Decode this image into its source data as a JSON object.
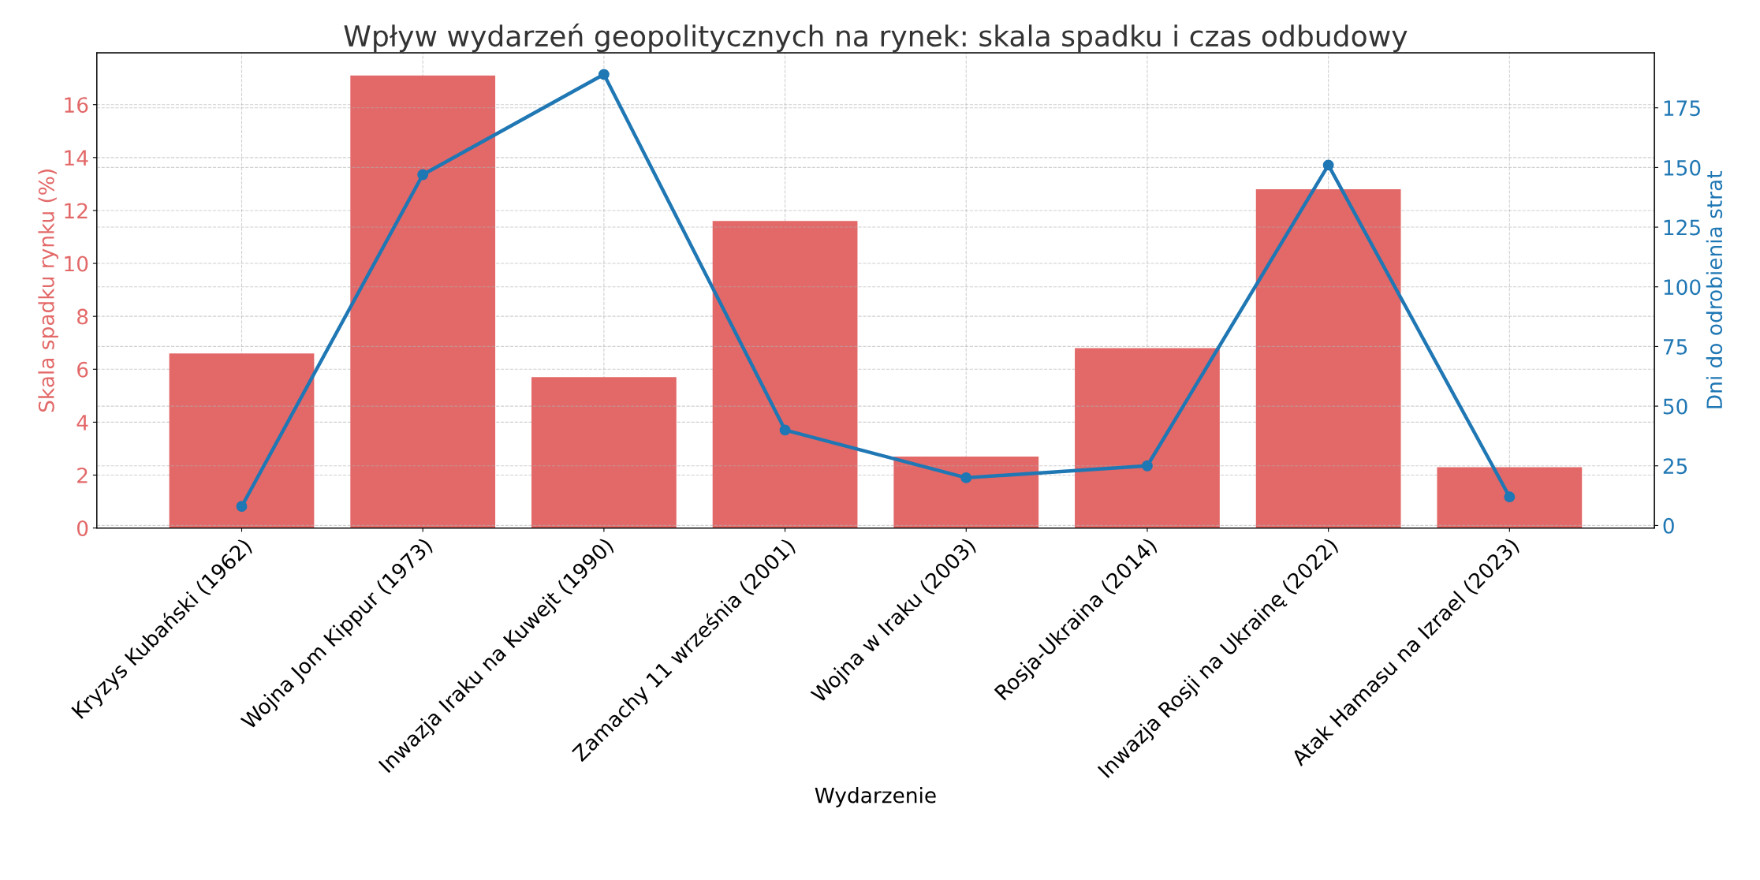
{
  "chart_data": {
    "type": "bar",
    "title": "Wpływ wydarzeń geopolitycznych na rynek: skala spadku i czas odbudowy",
    "xlabel": "Wydarzenie",
    "ylabel": "Skala spadku rynku (%)",
    "y2label": "Dni do odrobienia strat",
    "categories": [
      "Kryzys Kubański (1962)",
      "Wojna Jom Kippur (1973)",
      "Inwazja Iraku na Kuwejt (1990)",
      "Zamachy 11 września (2001)",
      "Wojna w Iraku (2003)",
      "Rosja-Ukraina (2014)",
      "Inwazja Rosji na Ukrainę (2022)",
      "Atak Hamasu na Izrael (2023)"
    ],
    "series": [
      {
        "color": "#e36868",
        "values": [
          6.6,
          17.1,
          5.7,
          11.6,
          2.7,
          6.8,
          12.8,
          2.3
        ]
      },
      {
        "type": "line",
        "axis": "y2",
        "color": "#1f77b4",
        "values": [
          8,
          147,
          189,
          40,
          20,
          25,
          151,
          12
        ]
      }
    ],
    "ylim": [
      0,
      17.96
    ],
    "yticks": [
      0,
      2,
      4,
      6,
      8,
      10,
      12,
      14,
      16
    ],
    "y2lim": [
      -1.05,
      198.05
    ],
    "y2ticks": [
      0,
      25,
      50,
      75,
      100,
      125,
      150,
      175
    ],
    "grid": true,
    "marker": "circle",
    "line_style": "solid"
  }
}
